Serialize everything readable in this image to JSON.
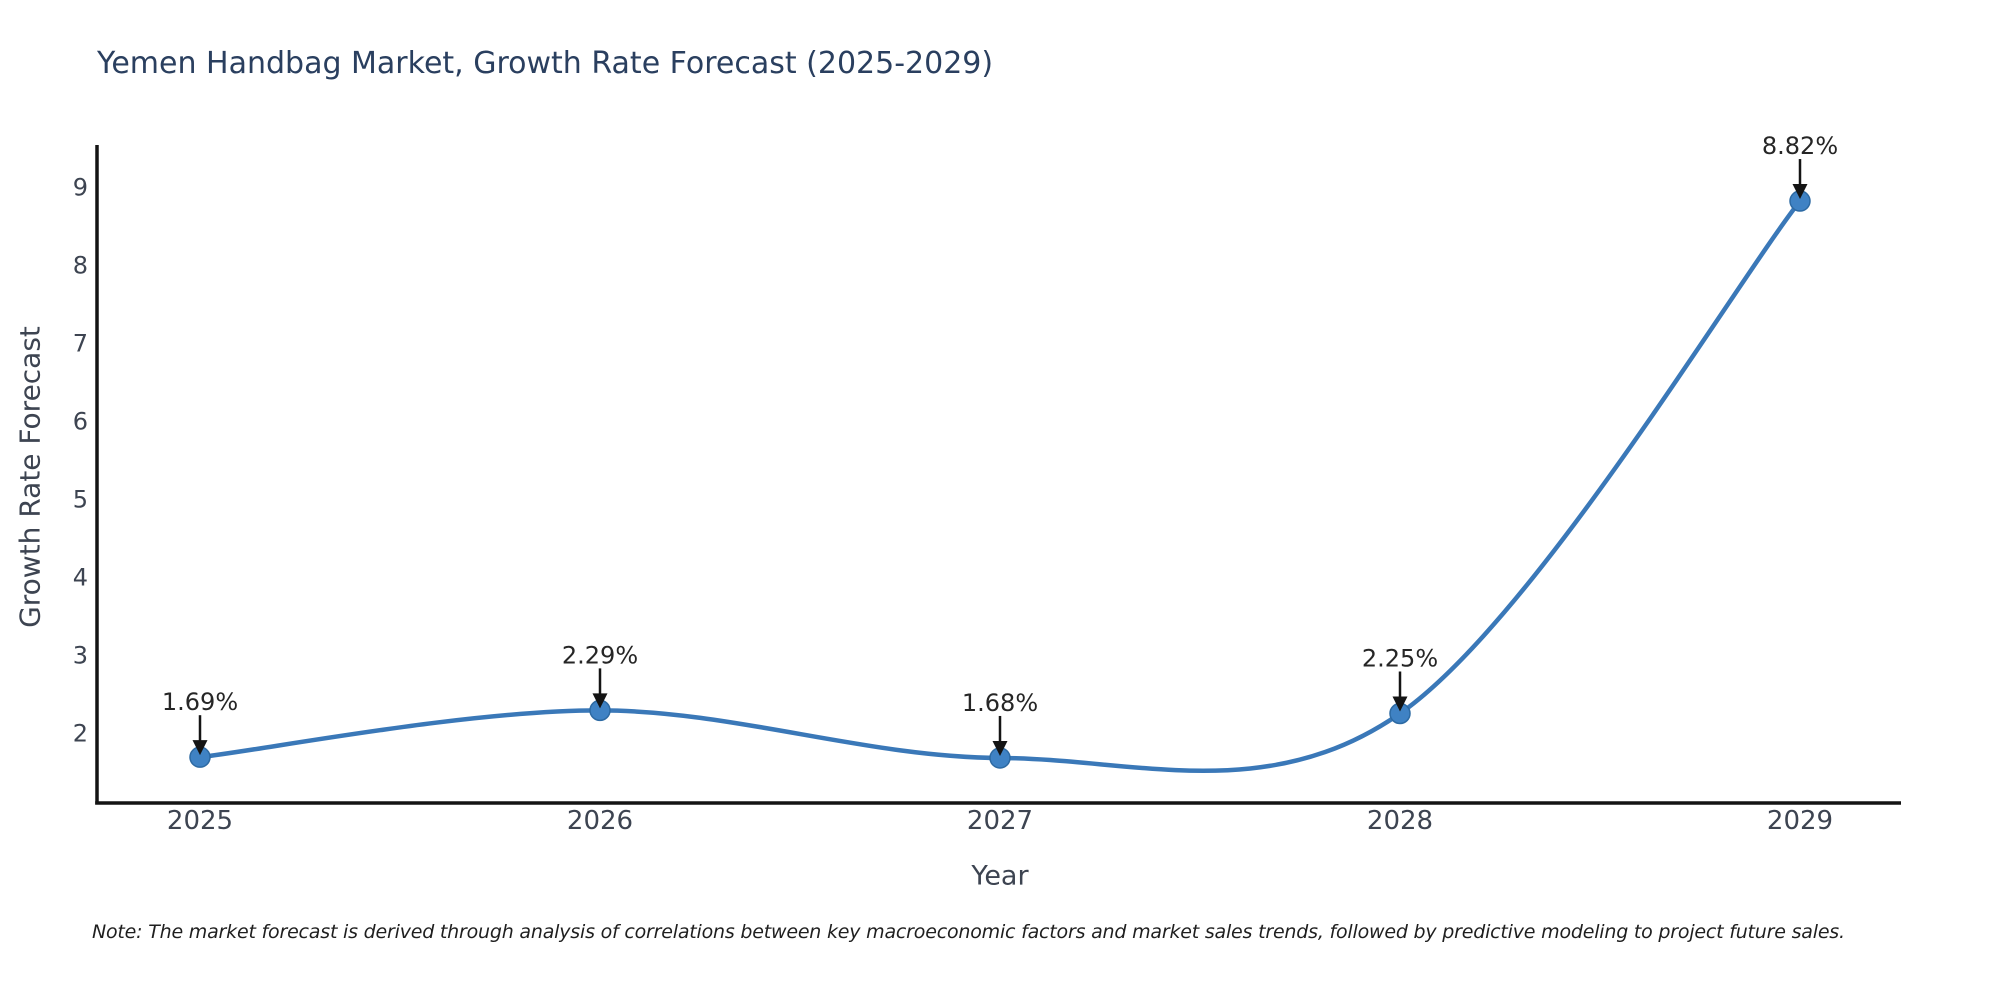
{
  "chart_data": {
    "type": "line",
    "title": "Yemen Handbag Market, Growth Rate Forecast (2025-2029)",
    "xlabel": "Year",
    "ylabel": "Growth Rate Forecast",
    "x": [
      "2025",
      "2026",
      "2027",
      "2028",
      "2029"
    ],
    "series": [
      {
        "name": "Growth Rate Forecast",
        "values": [
          1.69,
          2.29,
          1.68,
          2.25,
          8.82
        ]
      }
    ],
    "point_labels": [
      "1.69%",
      "2.29%",
      "1.68%",
      "2.25%",
      "8.82%"
    ],
    "yticks": [
      2,
      3,
      4,
      5,
      6,
      7,
      8,
      9
    ],
    "ylim": [
      1.1,
      9.6
    ],
    "line_shape": "spline",
    "grid": false,
    "legend_position": "none",
    "annotation_style": "percent value labels with downward black arrows above each marker",
    "colors": {
      "line": "#3a78b8",
      "marker_fill": "#3f82c4",
      "marker_edge": "#2d6aa3",
      "title_text": "#2a3f5f",
      "axis_text": "#3d4451",
      "annotation_text": "#262626",
      "spine": "#141414",
      "arrow": "#141414",
      "background": "#ffffff"
    }
  },
  "footnote": "Note: The market forecast is derived through analysis of correlations between key macroeconomic factors and market sales trends, followed by predictive modeling to project future sales."
}
